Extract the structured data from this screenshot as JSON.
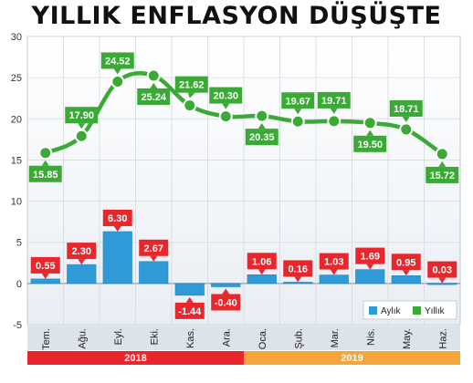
{
  "chart_data": {
    "type": "bar+line",
    "title": "YILLIK ENFLASYON DÜŞÜŞTE",
    "categories": [
      "Tem.",
      "Ağu.",
      "Eyl.",
      "Eki.",
      "Kas.",
      "Ara.",
      "Oca.",
      "Şub.",
      "Mar.",
      "Nis.",
      "May.",
      "Haz."
    ],
    "groups": [
      {
        "label": "2018",
        "from": 0,
        "to": 5,
        "color": "#e8262b"
      },
      {
        "label": "2019",
        "from": 6,
        "to": 11,
        "color": "#f6a43c"
      }
    ],
    "series": [
      {
        "name": "Aylık",
        "type": "bar",
        "color": "#2e9ad8",
        "values": [
          0.55,
          2.3,
          6.3,
          2.67,
          -1.44,
          -0.4,
          1.06,
          0.16,
          1.03,
          1.69,
          0.95,
          0.03
        ],
        "labels": [
          "0.55",
          "2.30",
          "6.30",
          "2.67",
          "-1.44",
          "-0.40",
          "1.06",
          "0.16",
          "1.03",
          "1.69",
          "0.95",
          "0.03"
        ]
      },
      {
        "name": "Yıllık",
        "type": "line",
        "color": "#3ba935",
        "values": [
          15.85,
          17.9,
          24.52,
          25.24,
          21.62,
          20.3,
          20.35,
          19.67,
          19.71,
          19.5,
          18.71,
          15.72
        ],
        "labels": [
          "15.85",
          "17.90",
          "24.52",
          "25.24",
          "21.62",
          "20.30",
          "20.35",
          "19.67",
          "19.71",
          "19.50",
          "18.71",
          "15.72"
        ]
      }
    ],
    "ylim": [
      -5,
      30
    ],
    "yticks": [
      -5,
      0,
      5,
      10,
      15,
      20,
      25,
      30
    ],
    "ytick_labels": [
      "-5",
      "0",
      "5",
      "10",
      "15",
      "20",
      "25",
      "30"
    ],
    "legend": {
      "position": "bottom-right",
      "items": [
        "Aylık",
        "Yıllık"
      ]
    },
    "bar_label_color": "#e8262b",
    "line_label_color": "#3ba935"
  }
}
